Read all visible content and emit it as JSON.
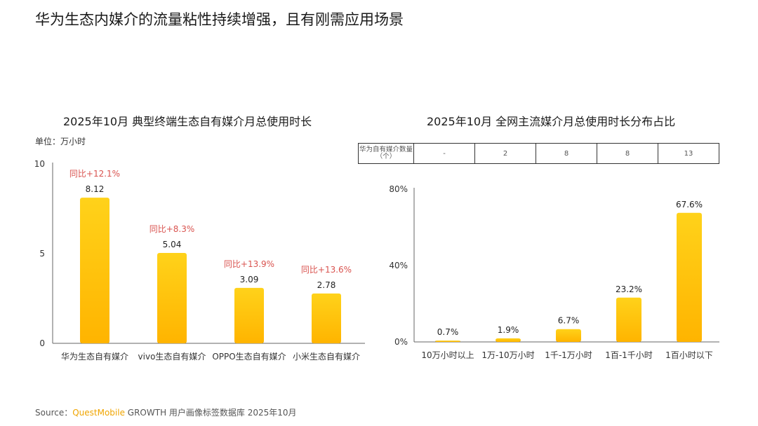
{
  "title": "华为生态内媒介的流量粘性持续增强，且有刚需应用场景",
  "unit_label": "单位：万小时",
  "source": {
    "prefix": "Source：",
    "brand": "QuestMobile",
    "rest": " GROWTH 用户画像标签数据库 2025年10月"
  },
  "count_table": {
    "header": "华为自有媒介数量（个）",
    "values": [
      "-",
      "2",
      "8",
      "8",
      "13"
    ]
  },
  "colors": {
    "bar_top": "#FFD21A",
    "bar_bottom": "#FFB400",
    "growth_text": "#D9534F",
    "axis": "#666666"
  },
  "chart_data": [
    {
      "type": "bar",
      "title": "2025年10月 典型终端生态自有媒介月总使用时长",
      "categories": [
        "华为生态自有媒介",
        "vivo生态自有媒介",
        "OPPO生态自有媒介",
        "小米生态自有媒介"
      ],
      "values": [
        8.12,
        5.04,
        3.09,
        2.78
      ],
      "value_labels": [
        "8.12",
        "5.04",
        "3.09",
        "2.78"
      ],
      "annotations": [
        "同比+12.1%",
        "同比+8.3%",
        "同比+13.9%",
        "同比+13.6%"
      ],
      "yticks": [
        "0",
        "5",
        "10"
      ],
      "ylim": [
        0,
        10
      ],
      "grid": false
    },
    {
      "type": "bar",
      "title": "2025年10月 全网主流媒介月总使用时长分布占比",
      "categories": [
        "10万小时以上",
        "1万-10万小时",
        "1千-1万小时",
        "1百-1千小时",
        "1百小时以下"
      ],
      "values": [
        0.7,
        1.9,
        6.7,
        23.2,
        67.6
      ],
      "value_labels": [
        "0.7%",
        "1.9%",
        "6.7%",
        "23.2%",
        "67.6%"
      ],
      "yticks": [
        "0%",
        "40%",
        "80%"
      ],
      "ylim": [
        0,
        80
      ],
      "grid": false
    }
  ]
}
